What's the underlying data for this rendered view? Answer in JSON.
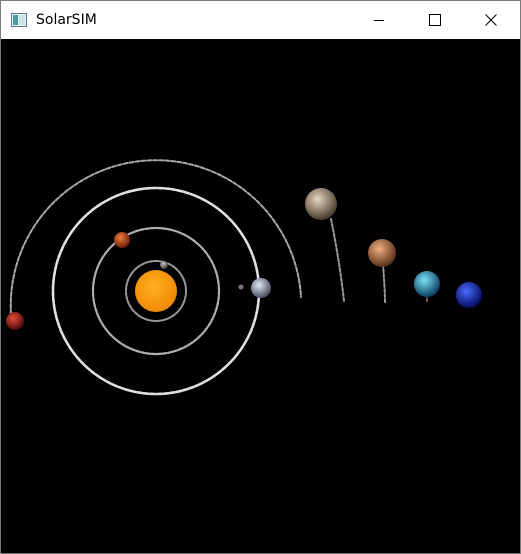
{
  "window": {
    "title": "SolarSIM",
    "icon": "app-window-icon"
  },
  "titlebar_controls": [
    {
      "name": "minimize-button",
      "icon": "minimize-icon"
    },
    {
      "name": "maximize-button",
      "icon": "maximize-icon"
    },
    {
      "name": "close-button",
      "icon": "close-icon"
    }
  ],
  "scene": {
    "background_color": "#000000",
    "sun": {
      "name": "sun",
      "color": "#ff9a00"
    },
    "planets": [
      {
        "name": "mercury",
        "color": "#8a8a8a"
      },
      {
        "name": "venus",
        "color": "#c85a1e"
      },
      {
        "name": "earth",
        "color": "#9aa3b8"
      },
      {
        "name": "mars",
        "color": "#b02a22"
      },
      {
        "name": "jupiter",
        "color": "#a08a72"
      },
      {
        "name": "saturn",
        "color": "#c07a48"
      },
      {
        "name": "uranus",
        "color": "#2fa0c8"
      },
      {
        "name": "neptune",
        "color": "#1a2fd0"
      }
    ]
  }
}
